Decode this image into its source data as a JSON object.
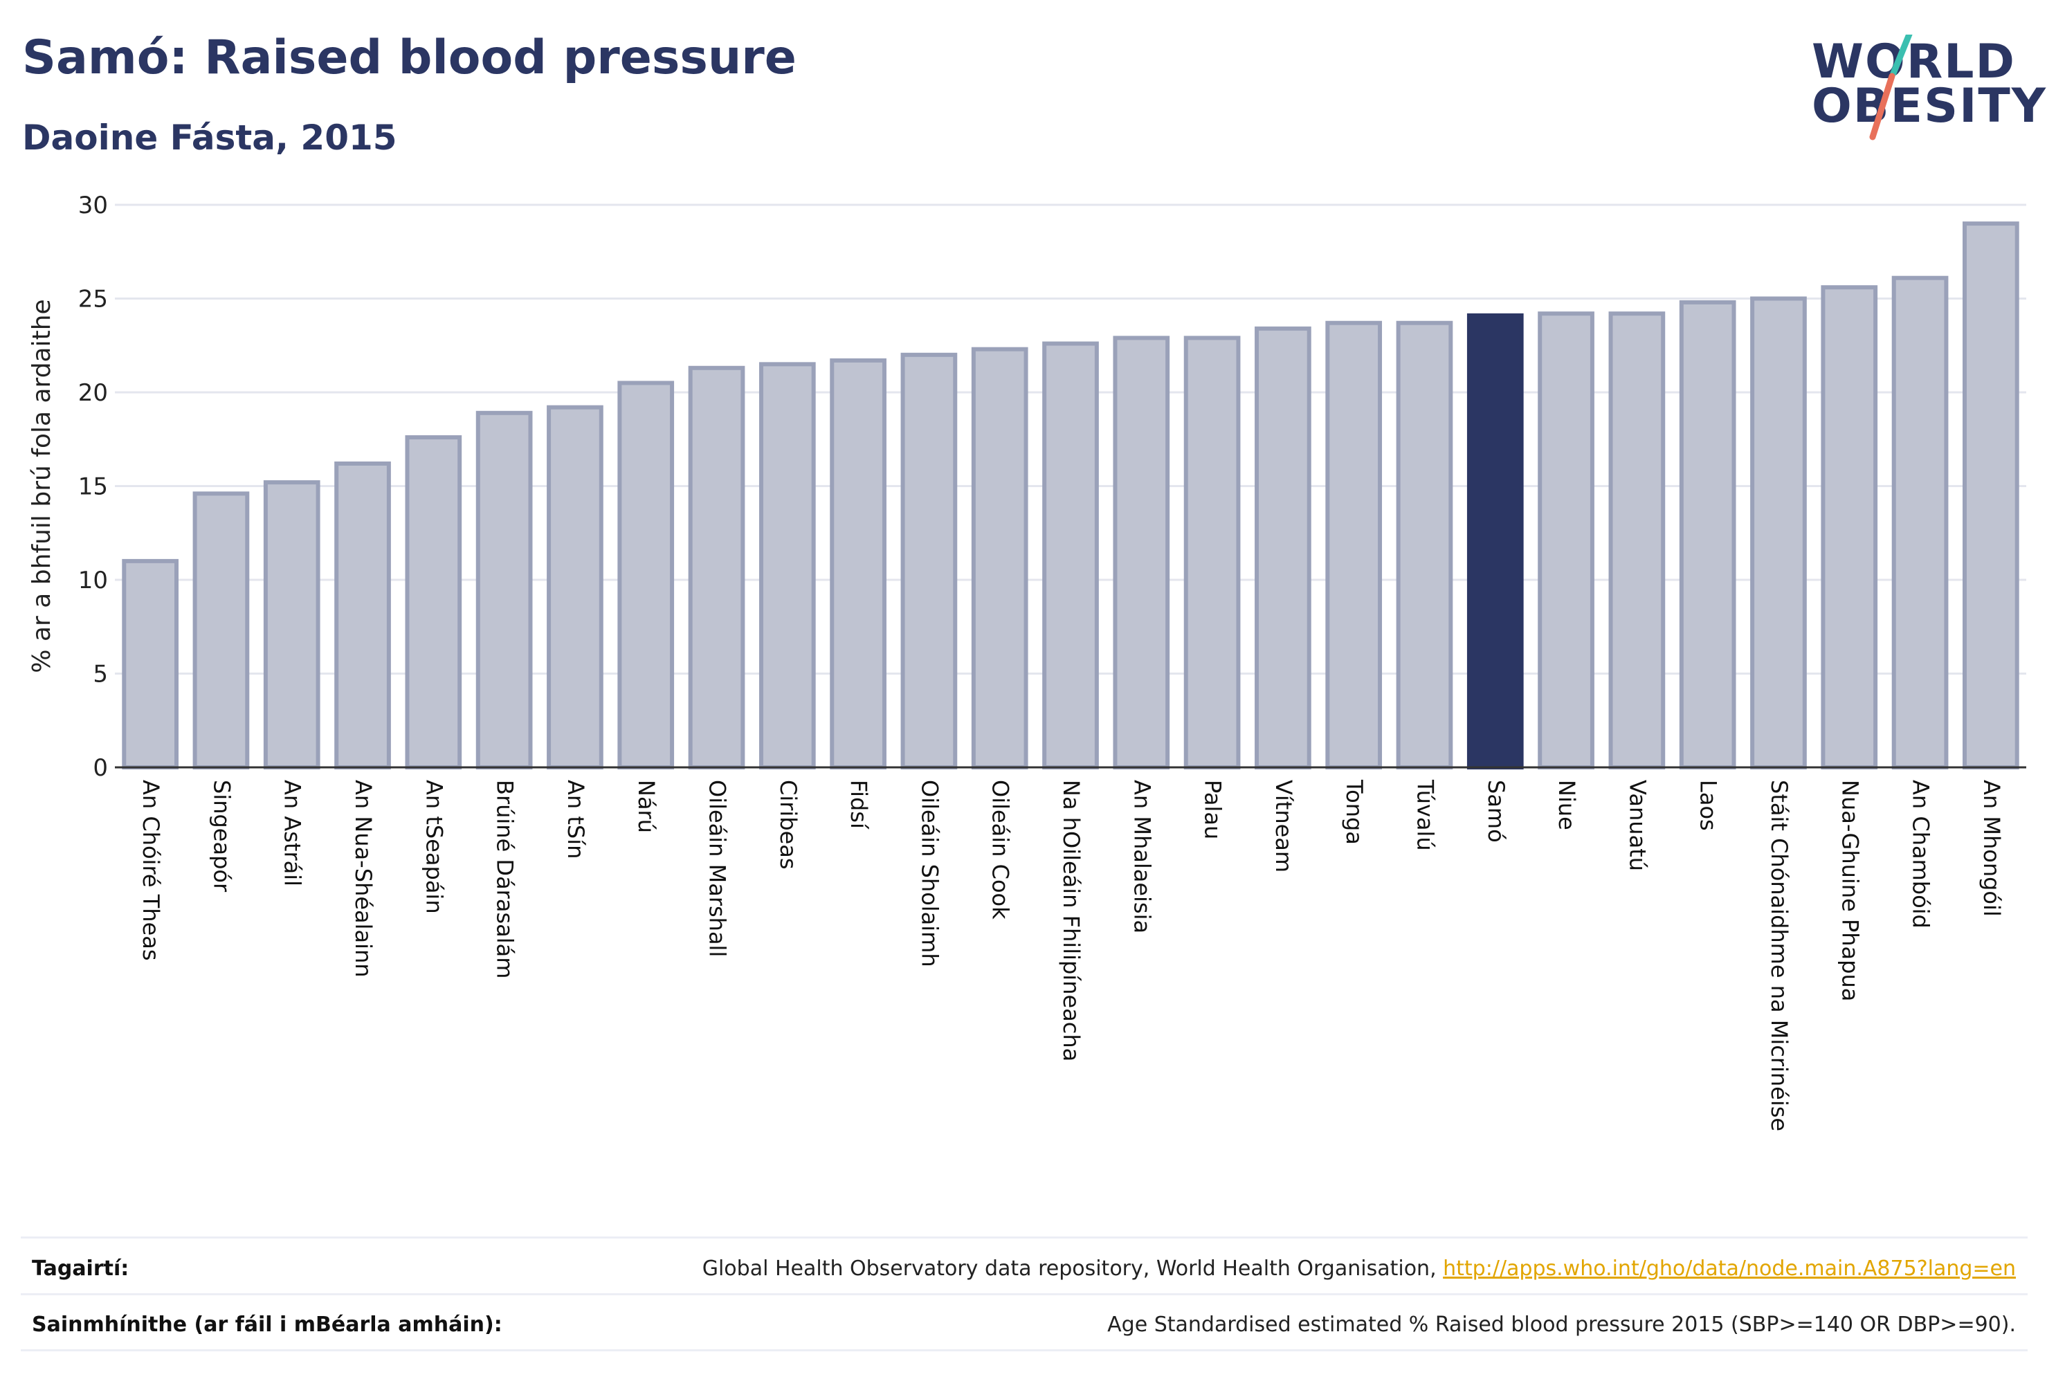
{
  "header": {
    "title": "Samó: Raised blood pressure",
    "subtitle": "Daoine Fásta, 2015"
  },
  "logo": {
    "line1": "WORLD",
    "line2": "OBESITY",
    "colors": {
      "text": "#2b3663",
      "slash_top": "#3bbfb0",
      "slash_bottom": "#e8705a"
    }
  },
  "chart_data": {
    "type": "bar",
    "ylabel": "% ar a bhfuil brú fola ardaithe",
    "ylim": [
      0,
      30
    ],
    "yticks": [
      0,
      5,
      10,
      15,
      20,
      25,
      30
    ],
    "grid": true,
    "highlight": "Samó",
    "colors": {
      "bar": "#bfc3d1",
      "bar_border": "#9aa1b9",
      "highlight": "#2b3663",
      "grid": "#e4e6ee",
      "axis": "#333333"
    },
    "categories": [
      "An Chóiré Theas",
      "Singeapór",
      "An Astráil",
      "An Nua-Shéalainn",
      "An tSeapáin",
      "Brúiné Dárasalám",
      "An tSín",
      "Nárú",
      "Oileáin Marshall",
      "Ciribeas",
      "Fidsí",
      "Oileáin Sholaimh",
      "Oileáin Cook",
      "Na hOileáin Fhilipíneacha",
      "An Mhalaeisia",
      "Palau",
      "Vítneam",
      "Tonga",
      "Túvalú",
      "Samó",
      "Niue",
      "Vanuatú",
      "Laos",
      "Stáit Chónaidhme na Micrinéise",
      "Nua-Ghuine Phapua",
      "An Chambóid",
      "An Mhongóil"
    ],
    "values": [
      11.0,
      14.6,
      15.2,
      16.2,
      17.6,
      18.9,
      19.2,
      20.5,
      21.3,
      21.5,
      21.7,
      22.0,
      22.3,
      22.6,
      22.9,
      22.9,
      23.4,
      23.7,
      23.7,
      24.1,
      24.2,
      24.2,
      24.8,
      25.0,
      25.6,
      26.1,
      29.0
    ]
  },
  "footer": {
    "references_label": "Tagairtí:",
    "references_text": "Global Health Observatory data repository, World Health Organisation, ",
    "references_link": "http://apps.who.int/gho/data/node.main.A875?lang=en",
    "definitions_label": "Sainmhínithe (ar fáil i mBéarla amháin):",
    "definitions_text": "Age Standardised estimated % Raised blood pressure 2015 (SBP>=140 OR DBP>=90)."
  }
}
